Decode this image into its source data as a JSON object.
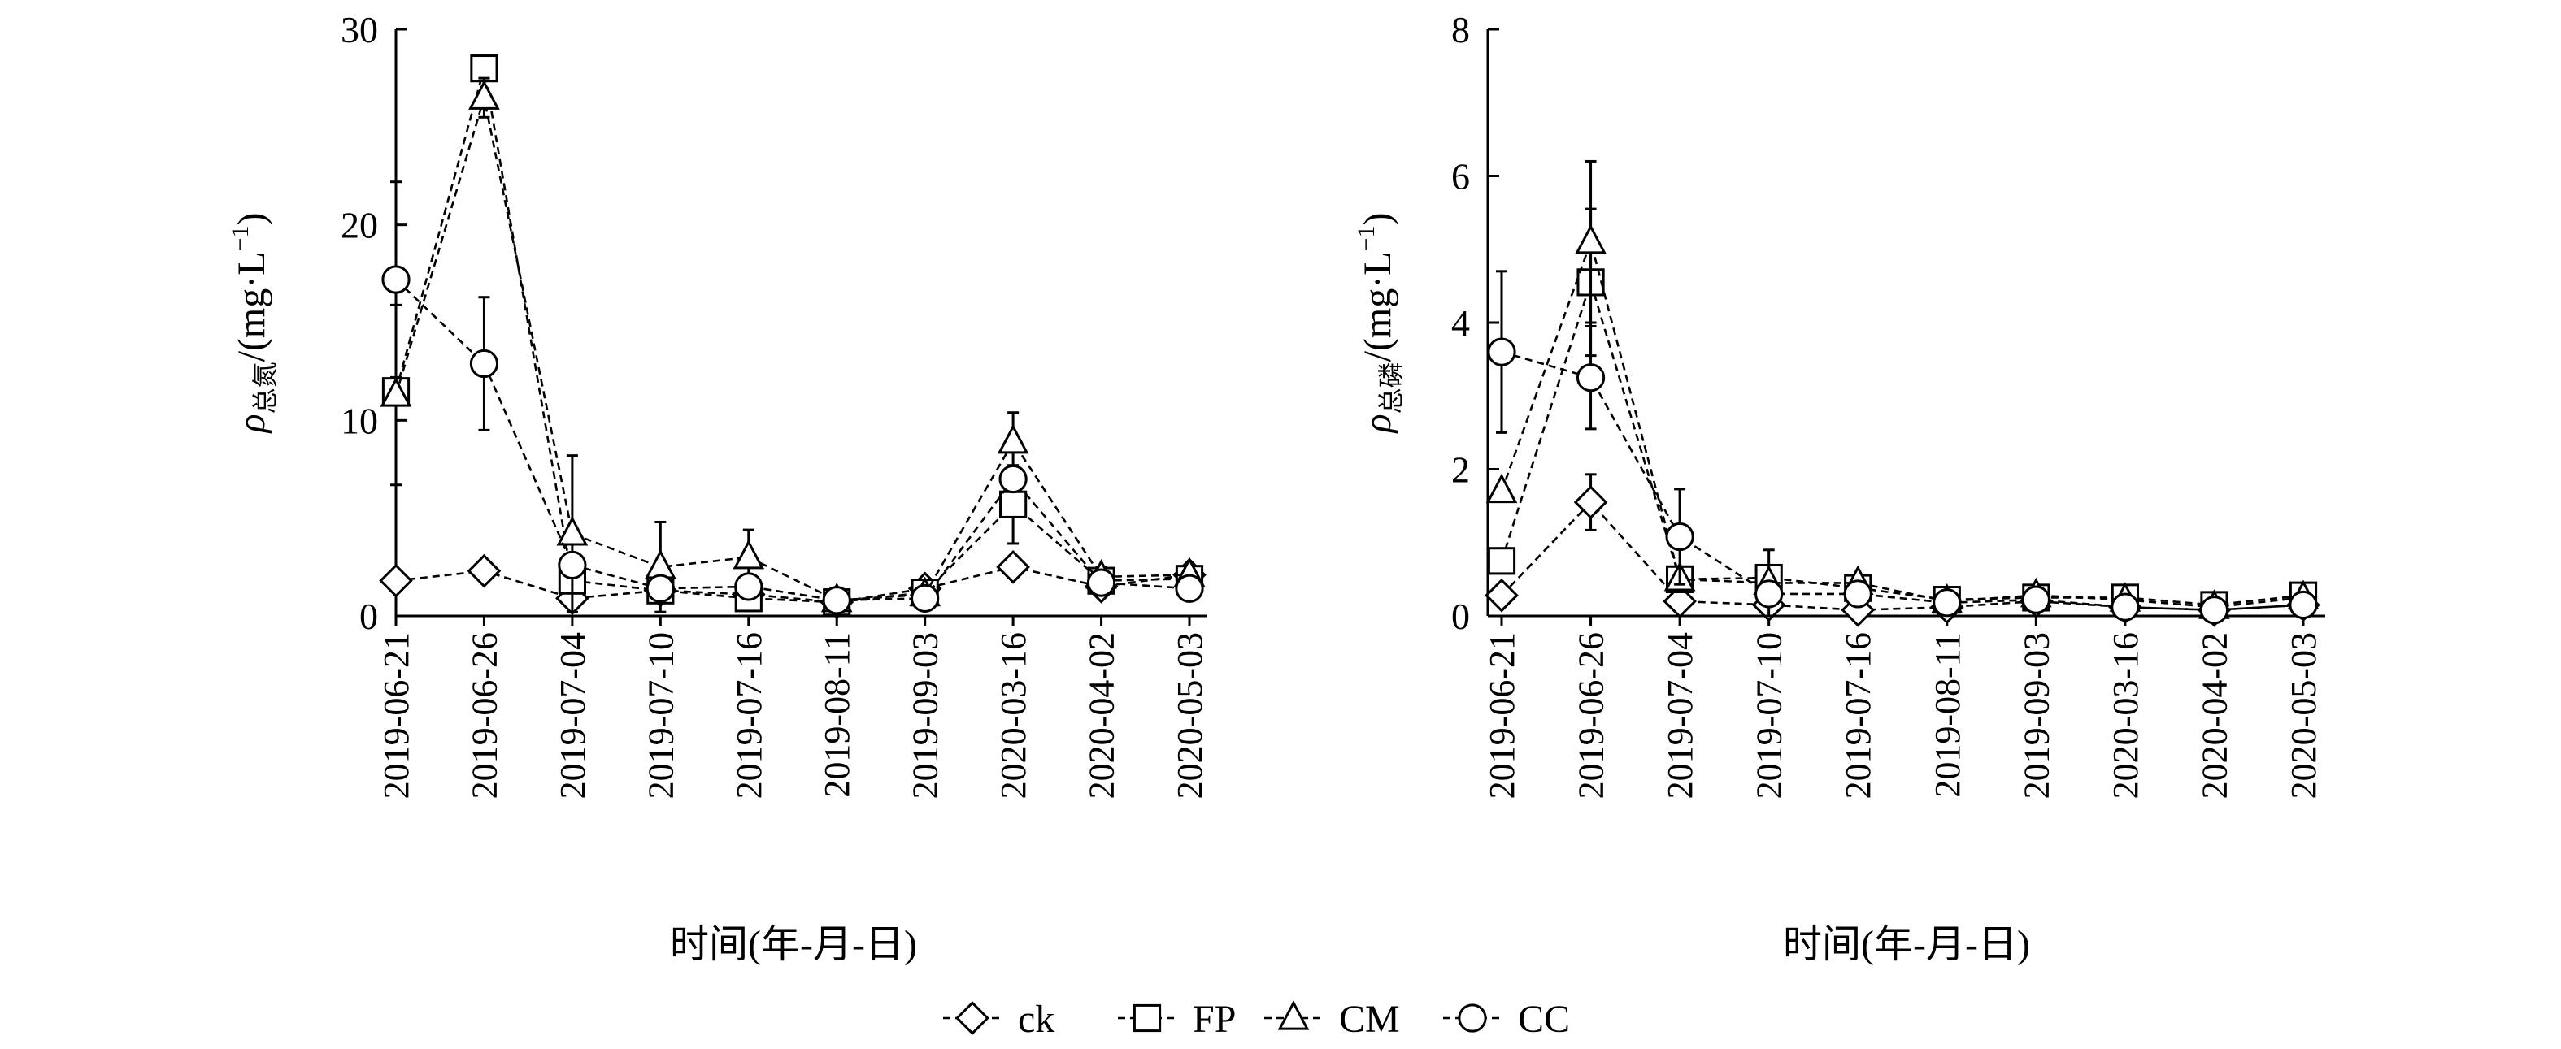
{
  "chart_data": [
    {
      "type": "line",
      "id": "total-nitrogen",
      "title": "",
      "xlabel": "时间(年-月-日)",
      "ylabel_symbol": "ρ",
      "ylabel_subscript": "总氮",
      "ylabel_unit": "/(mg·L",
      "ylabel_sup": "−1",
      "ylabel_close": ")",
      "ylim": [
        0,
        30
      ],
      "yticks": [
        "0",
        "10",
        "20",
        "30"
      ],
      "categories": [
        "2019-06-21",
        "2019-06-26",
        "2019-07-04",
        "2019-07-10",
        "2019-07-16",
        "2019-08-11",
        "2019-09-03",
        "2020-03-16",
        "2020-04-02",
        "2020-05-03"
      ],
      "series": [
        {
          "name": "ck",
          "marker": "diamond",
          "values": [
            1.8,
            2.3,
            0.9,
            1.3,
            1.1,
            0.7,
            1.4,
            2.5,
            1.5,
            2.1
          ],
          "errors": [
            0,
            0,
            0,
            0,
            0,
            0,
            0,
            0,
            0,
            0
          ]
        },
        {
          "name": "FP",
          "marker": "square",
          "values": [
            11.5,
            28.0,
            1.8,
            1.3,
            0.9,
            0.7,
            1.2,
            5.7,
            1.8,
            1.9
          ],
          "errors": [
            0,
            0,
            0,
            0,
            0,
            0,
            0,
            2.0,
            0,
            0
          ]
        },
        {
          "name": "CM",
          "marker": "triangle",
          "values": [
            11.3,
            26.5,
            4.2,
            2.5,
            3.0,
            0.8,
            1.1,
            8.9,
            2.0,
            2.1
          ],
          "errors": [
            4.6,
            1.0,
            4.0,
            2.3,
            1.4,
            0,
            0,
            1.5,
            0.5,
            0
          ],
          "err_x_offset": 0
        },
        {
          "name": "CC",
          "marker": "circle",
          "values": [
            17.2,
            12.9,
            2.6,
            1.4,
            1.5,
            0.8,
            0.9,
            7.0,
            1.7,
            1.4
          ],
          "errors": [
            5.0,
            3.4,
            0,
            0,
            0,
            0,
            0,
            0,
            0,
            0
          ]
        }
      ]
    },
    {
      "type": "line",
      "id": "total-phosphorus",
      "title": "",
      "xlabel": "时间(年-月-日)",
      "ylabel_symbol": "ρ",
      "ylabel_subscript": "总磷",
      "ylabel_unit": "/(mg·L",
      "ylabel_sup": "−1",
      "ylabel_close": ")",
      "ylim": [
        0,
        8
      ],
      "yticks": [
        "0",
        "2",
        "4",
        "6",
        "8"
      ],
      "categories": [
        "2019-06-21",
        "2019-06-26",
        "2019-07-04",
        "2019-07-10",
        "2019-07-16",
        "2019-08-11",
        "2019-09-03",
        "2020-03-16",
        "2020-04-02",
        "2020-05-03"
      ],
      "series": [
        {
          "name": "ck",
          "marker": "diamond",
          "values": [
            0.28,
            1.55,
            0.2,
            0.15,
            0.08,
            0.12,
            0.2,
            0.12,
            0.08,
            0.15
          ],
          "errors": [
            0,
            0.38,
            0,
            0,
            0,
            0,
            0,
            0,
            0,
            0
          ]
        },
        {
          "name": "FP",
          "marker": "square",
          "values": [
            0.75,
            4.55,
            0.5,
            0.52,
            0.38,
            0.22,
            0.25,
            0.25,
            0.15,
            0.28
          ],
          "errors": [
            0,
            1.0,
            0,
            0,
            0,
            0,
            0,
            0,
            0,
            0
          ]
        },
        {
          "name": "CM",
          "marker": "triangle",
          "values": [
            1.7,
            5.1,
            0.5,
            0.45,
            0.45,
            0.2,
            0.28,
            0.22,
            0.12,
            0.25
          ],
          "errors": [
            0,
            1.1,
            0,
            0.45,
            0.1,
            0,
            0,
            0,
            0,
            0
          ]
        },
        {
          "name": "CC",
          "marker": "circle",
          "values": [
            3.6,
            3.25,
            1.08,
            0.3,
            0.3,
            0.18,
            0.22,
            0.12,
            0.08,
            0.15
          ],
          "errors": [
            1.1,
            0.7,
            0.65,
            0,
            0,
            0,
            0,
            0,
            0,
            0
          ]
        }
      ]
    }
  ],
  "legend": {
    "placement": "bottom-center",
    "items": [
      {
        "name": "ck",
        "marker": "diamond"
      },
      {
        "name": "FP",
        "marker": "square"
      },
      {
        "name": "CM",
        "marker": "triangle"
      },
      {
        "name": "CC",
        "marker": "circle"
      }
    ]
  }
}
